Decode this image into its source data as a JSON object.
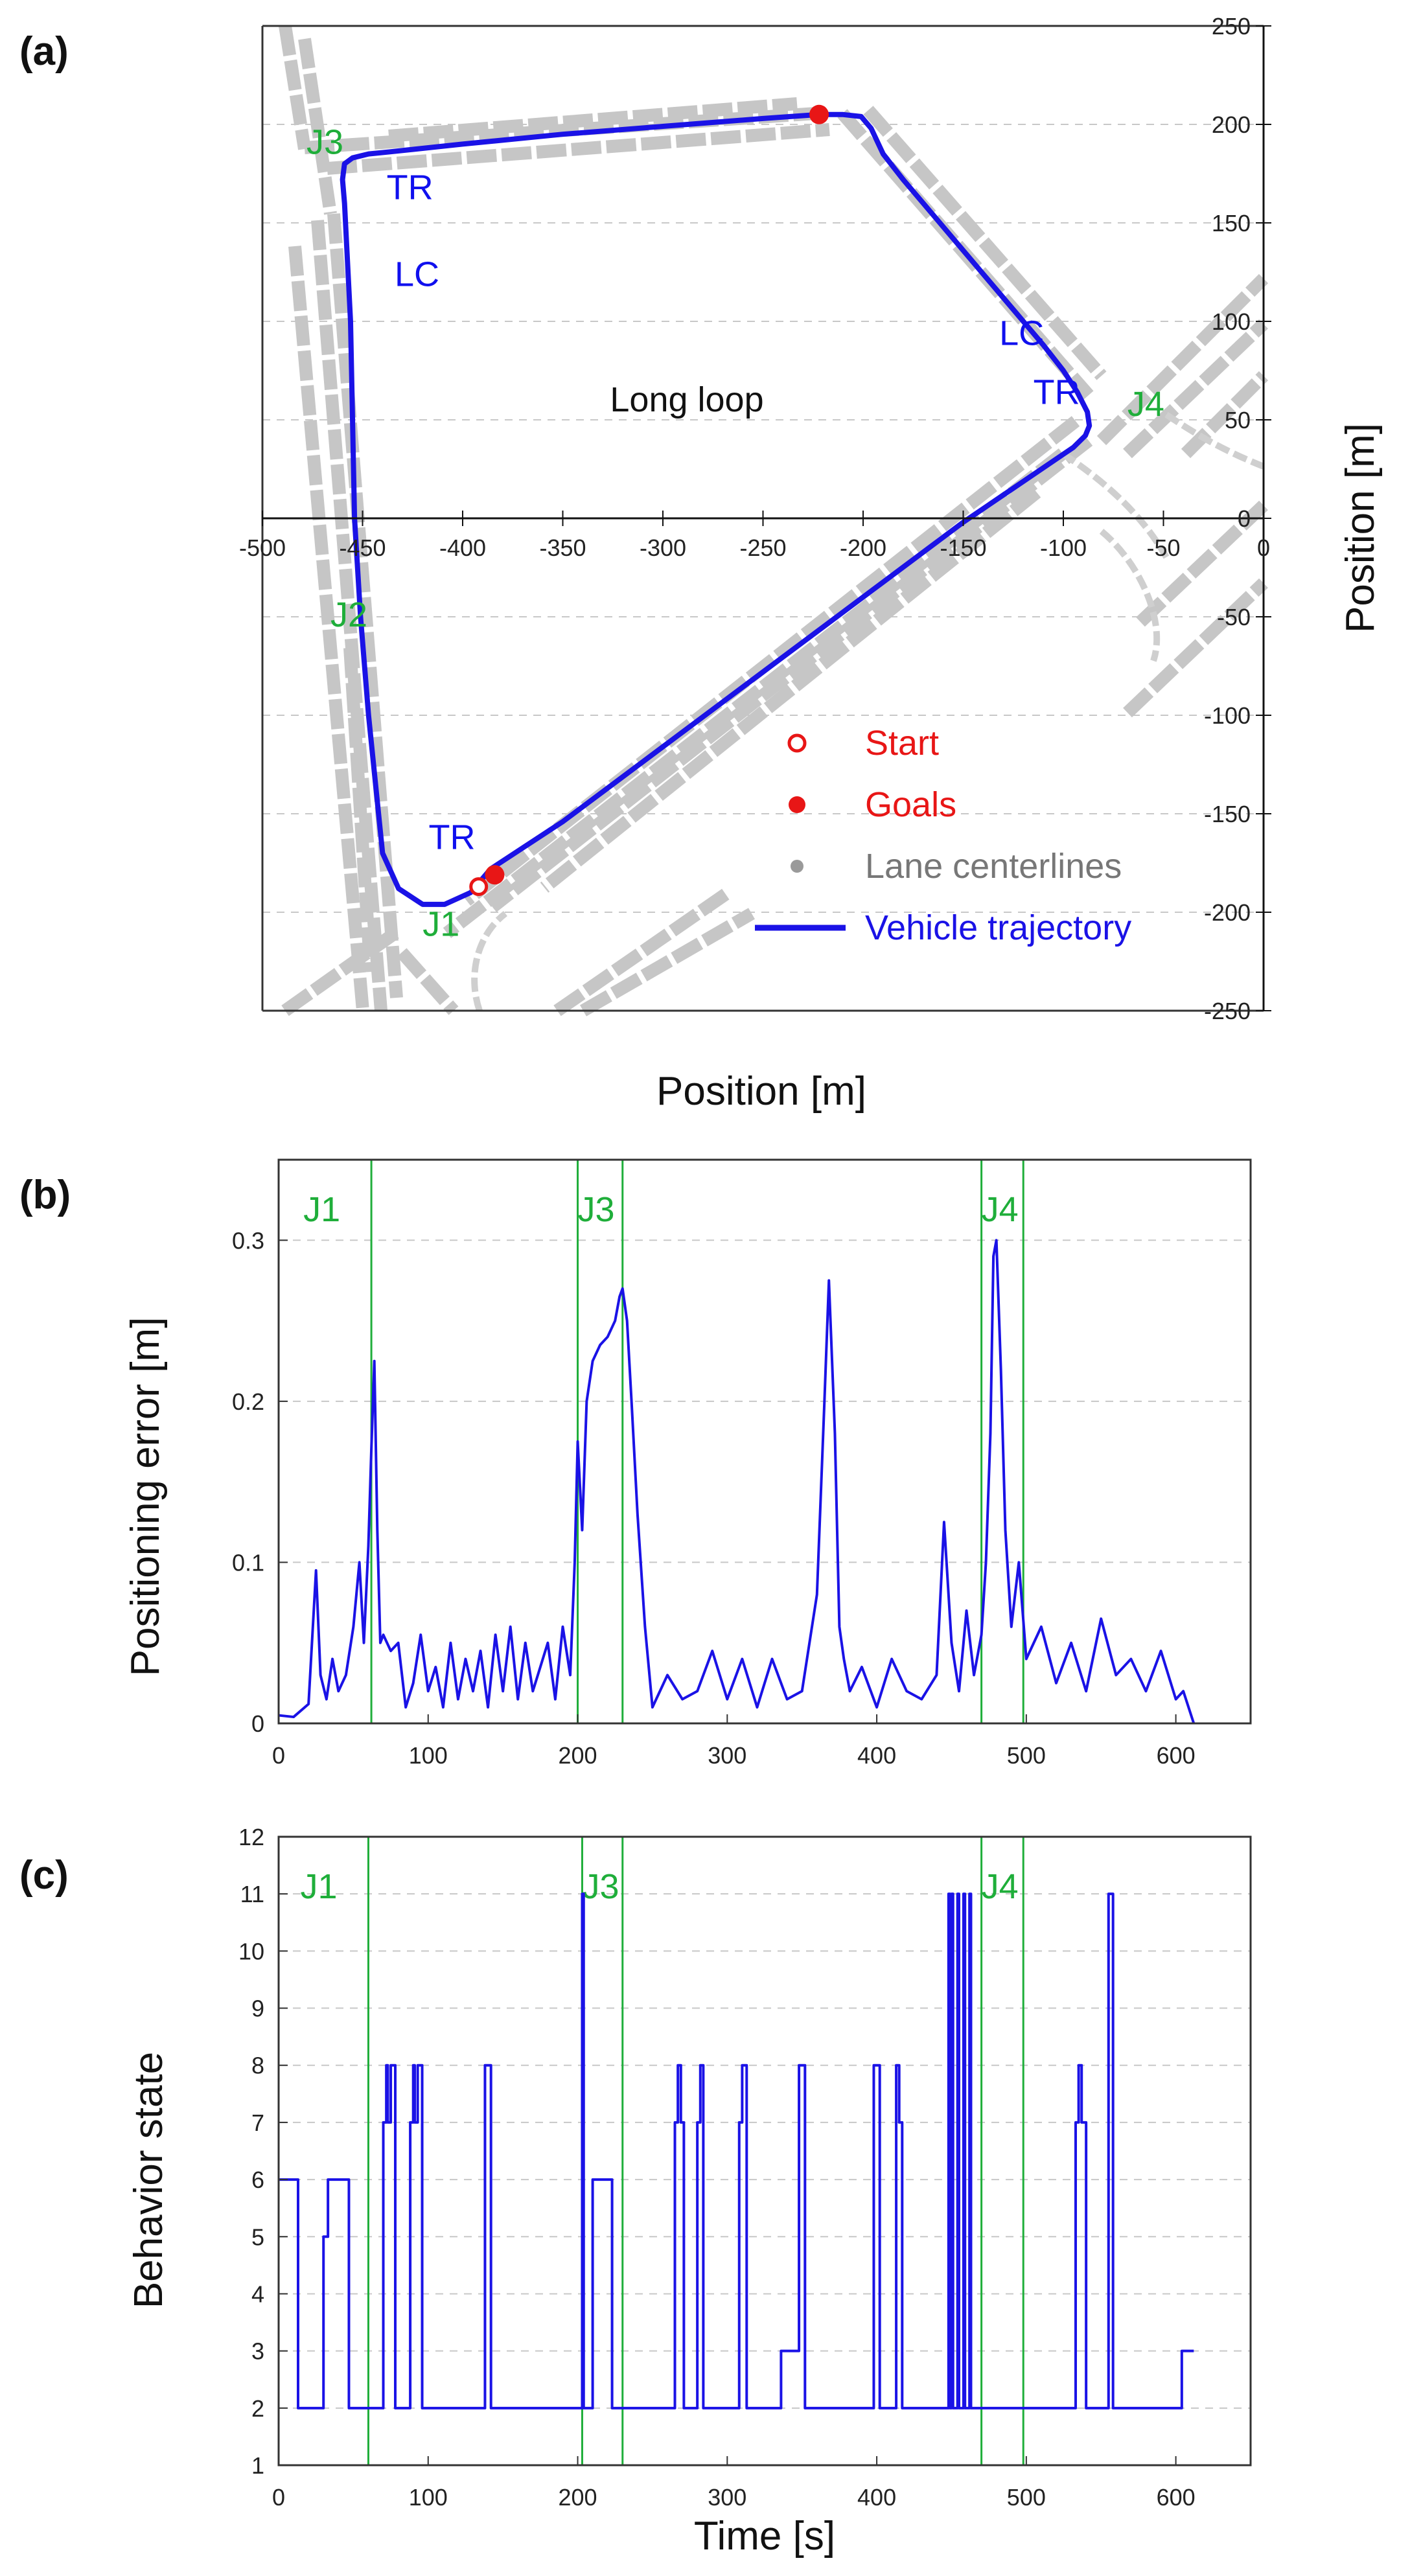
{
  "panels": {
    "a": "(a)",
    "b": "(b)",
    "c": "(c)"
  },
  "colors": {
    "trajectory": "#1a12e6",
    "lane": "#c6c6c6",
    "junction": "#1fae3a",
    "marker": "#e81616",
    "grid": "#c8c8c8"
  },
  "chart_data": [
    {
      "id": "a",
      "type": "scatter",
      "title": "",
      "xlabel": "Position [m]",
      "ylabel": "Position [m]",
      "xlim": [
        -500,
        0
      ],
      "ylim": [
        -250,
        250
      ],
      "xticks": [
        "-500",
        "-450",
        "-400",
        "-350",
        "-300",
        "-250",
        "-200",
        "-150",
        "-100",
        "-50",
        "0"
      ],
      "yticks": [
        "250",
        "200",
        "150",
        "100",
        "50",
        "0",
        "-50",
        "-100",
        "-150",
        "-200",
        "-250"
      ],
      "grid": "horizontal dashed",
      "legend_position": "bottom-right",
      "legend": [
        {
          "label": "Start",
          "marker": "open-circle",
          "color": "#e81616"
        },
        {
          "label": "Goals",
          "marker": "filled-circle",
          "color": "#e81616"
        },
        {
          "label": "Lane centerlines",
          "marker": "dot",
          "color": "#9a9a9a"
        },
        {
          "label": "Vehicle trajectory",
          "marker": "line",
          "color": "#1a12e6"
        }
      ],
      "center_label": "Long loop",
      "junctions": [
        {
          "label": "J1",
          "x": -420,
          "y": -212
        },
        {
          "label": "J2",
          "x": -466,
          "y": -55
        },
        {
          "label": "J3",
          "x": -478,
          "y": 185
        },
        {
          "label": "J4",
          "x": -68,
          "y": 52
        }
      ],
      "annotations": [
        {
          "label": "TR",
          "x": -438,
          "y": 162
        },
        {
          "label": "LC",
          "x": -434,
          "y": 118
        },
        {
          "label": "LC",
          "x": -132,
          "y": 88
        },
        {
          "label": "TR",
          "x": -115,
          "y": 58
        },
        {
          "label": "TR",
          "x": -417,
          "y": -168
        }
      ],
      "start": {
        "x": -392,
        "y": -187
      },
      "goals": [
        {
          "x": -384,
          "y": -181
        },
        {
          "x": -222,
          "y": 205
        }
      ],
      "trajectory": {
        "x": [
          -386,
          -396,
          -409,
          -420,
          -432,
          -440,
          -443,
          -447,
          -451,
          -454,
          -455,
          -456,
          -458,
          -459,
          -460,
          -459,
          -455,
          -447,
          -437,
          -400,
          -350,
          -300,
          -250,
          -222,
          -210,
          -201,
          -196,
          -190,
          -180,
          -170,
          -160,
          -150,
          -140,
          -130,
          -120,
          -110,
          -100,
          -93,
          -88,
          -87,
          -89,
          -95,
          -150,
          -200,
          -250,
          -300,
          -350,
          -386
        ],
        "y": [
          -178,
          -190,
          -196,
          -196,
          -188,
          -170,
          -140,
          -100,
          -50,
          0,
          50,
          100,
          140,
          160,
          172,
          180,
          183,
          185,
          186,
          190,
          195,
          199,
          203,
          205,
          205,
          204,
          198,
          185,
          172,
          160,
          148,
          136,
          124,
          112,
          100,
          88,
          75,
          64,
          54,
          47,
          42,
          36,
          -2,
          -40,
          -78,
          -116,
          -154,
          -178
        ]
      }
    },
    {
      "id": "b",
      "type": "line",
      "title": "",
      "xlabel": "",
      "ylabel": "Positioning error [m]",
      "xlim": [
        0,
        650
      ],
      "ylim": [
        0,
        0.35
      ],
      "xticks": [
        "0",
        "100",
        "200",
        "300",
        "400",
        "500",
        "600"
      ],
      "yticks": [
        "0",
        "0.1",
        "0.2",
        "0.3"
      ],
      "grid": "horizontal dashed",
      "junction_marks": [
        {
          "label": "J1",
          "t": [
            62
          ]
        },
        {
          "label": "J3",
          "t": [
            200,
            230
          ]
        },
        {
          "label": "J4",
          "t": [
            470,
            498
          ]
        }
      ],
      "series": [
        {
          "x": [
            0,
            10,
            20,
            25,
            28,
            32,
            36,
            40,
            45,
            50,
            54,
            57,
            60,
            62,
            64,
            66,
            68,
            70,
            75,
            80,
            85,
            90,
            95,
            100,
            105,
            110,
            115,
            120,
            125,
            130,
            135,
            140,
            145,
            150,
            155,
            160,
            165,
            170,
            175,
            180,
            185,
            190,
            195,
            198,
            200,
            203,
            206,
            210,
            215,
            220,
            225,
            228,
            230,
            233,
            236,
            240,
            245,
            250,
            260,
            270,
            280,
            290,
            300,
            310,
            320,
            330,
            340,
            350,
            360,
            365,
            368,
            372,
            375,
            378,
            382,
            390,
            400,
            410,
            420,
            430,
            440,
            445,
            450,
            455,
            460,
            465,
            470,
            473,
            476,
            478,
            480,
            483,
            486,
            490,
            495,
            500,
            510,
            520,
            530,
            540,
            550,
            560,
            570,
            580,
            590,
            600,
            605,
            612
          ],
          "values": [
            0.005,
            0.004,
            0.012,
            0.095,
            0.03,
            0.015,
            0.04,
            0.02,
            0.03,
            0.06,
            0.1,
            0.05,
            0.11,
            0.17,
            0.225,
            0.12,
            0.05,
            0.055,
            0.045,
            0.05,
            0.01,
            0.025,
            0.055,
            0.02,
            0.035,
            0.01,
            0.05,
            0.015,
            0.04,
            0.02,
            0.045,
            0.01,
            0.055,
            0.02,
            0.06,
            0.015,
            0.05,
            0.02,
            0.035,
            0.05,
            0.015,
            0.06,
            0.03,
            0.1,
            0.175,
            0.12,
            0.2,
            0.225,
            0.235,
            0.24,
            0.25,
            0.265,
            0.27,
            0.25,
            0.2,
            0.13,
            0.06,
            0.01,
            0.03,
            0.015,
            0.02,
            0.045,
            0.015,
            0.04,
            0.01,
            0.04,
            0.015,
            0.02,
            0.08,
            0.2,
            0.275,
            0.18,
            0.06,
            0.04,
            0.02,
            0.035,
            0.01,
            0.04,
            0.02,
            0.015,
            0.03,
            0.125,
            0.05,
            0.02,
            0.07,
            0.03,
            0.055,
            0.1,
            0.18,
            0.29,
            0.3,
            0.22,
            0.12,
            0.06,
            0.1,
            0.04,
            0.06,
            0.025,
            0.05,
            0.02,
            0.065,
            0.03,
            0.04,
            0.02,
            0.045,
            0.015,
            0.02,
            0.0
          ]
        }
      ]
    },
    {
      "id": "c",
      "type": "line",
      "title": "",
      "xlabel": "Time [s]",
      "ylabel": "Behavior state",
      "xlim": [
        0,
        650
      ],
      "ylim": [
        1,
        12
      ],
      "xticks": [
        "0",
        "100",
        "200",
        "300",
        "400",
        "500",
        "600"
      ],
      "yticks": [
        "1",
        "2",
        "3",
        "4",
        "5",
        "6",
        "7",
        "8",
        "9",
        "10",
        "11",
        "12"
      ],
      "grid": "horizontal dashed",
      "junction_marks": [
        {
          "label": "J1",
          "t": [
            60
          ]
        },
        {
          "label": "J3",
          "t": [
            203,
            230
          ]
        },
        {
          "label": "J4",
          "t": [
            470,
            498
          ]
        }
      ],
      "series": [
        {
          "step": true,
          "x": [
            0,
            13,
            30,
            33,
            36,
            47,
            60,
            70,
            72,
            73,
            75,
            78,
            88,
            90,
            91,
            93,
            96,
            138,
            140,
            142,
            203,
            204,
            205,
            210,
            213,
            223,
            236,
            265,
            267,
            269,
            271,
            280,
            282,
            284,
            308,
            310,
            313,
            336,
            348,
            350,
            352,
            398,
            400,
            402,
            413,
            415,
            417,
            432,
            448,
            449,
            450,
            451,
            454,
            455,
            458,
            459,
            462,
            463,
            533,
            535,
            537,
            540,
            555,
            556,
            558,
            604,
            612
          ],
          "values": [
            6,
            2,
            5,
            6,
            6,
            2,
            2,
            7,
            8,
            7,
            8,
            2,
            7,
            8,
            7,
            8,
            2,
            8,
            8,
            2,
            11,
            2,
            2,
            6,
            6,
            2,
            2,
            7,
            8,
            7,
            2,
            7,
            8,
            2,
            7,
            8,
            2,
            3,
            8,
            8,
            2,
            8,
            8,
            2,
            8,
            7,
            2,
            2,
            11,
            2,
            11,
            2,
            11,
            2,
            11,
            2,
            11,
            2,
            7,
            8,
            7,
            2,
            11,
            11,
            2,
            3,
            3
          ]
        }
      ]
    }
  ]
}
